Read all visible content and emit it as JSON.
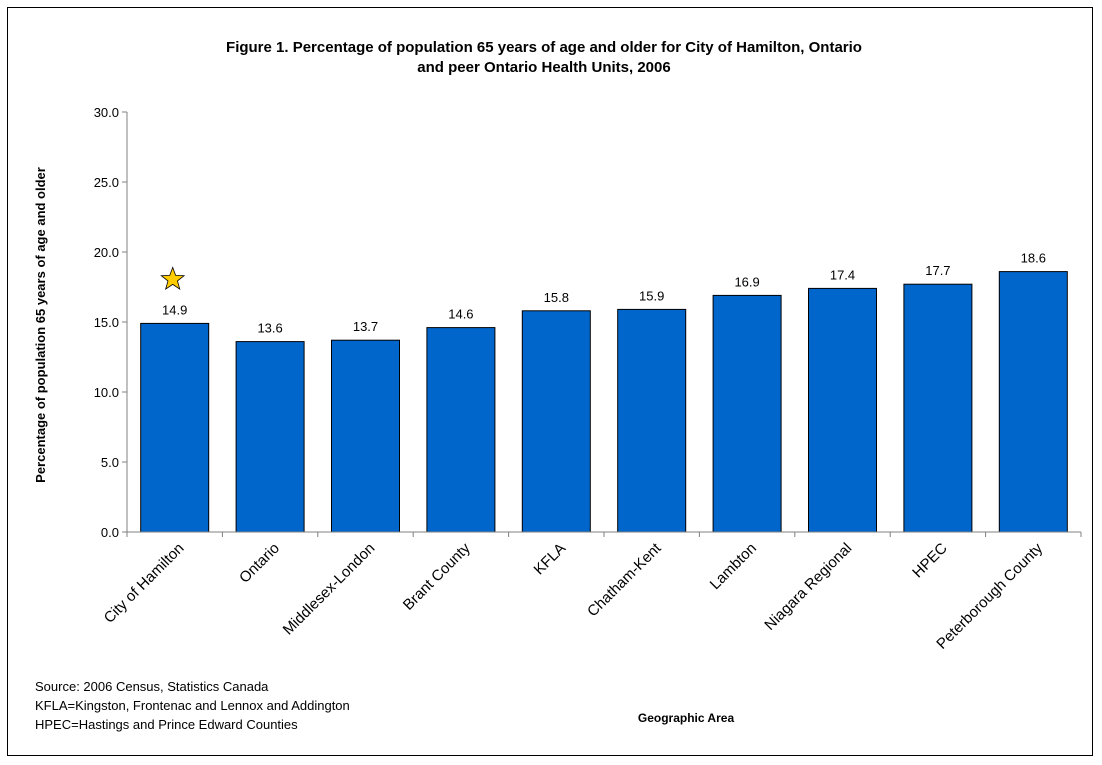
{
  "chart_data": {
    "type": "bar",
    "title": "Figure 1.  Percentage of population 65 years of age and older for City of Hamilton, Ontario",
    "title_line2": "and peer Ontario Health Units, 2006",
    "xlabel": "Geographic Area",
    "ylabel": "Percentage of population 65 years of age and older",
    "ylim": [
      0,
      30
    ],
    "yticks": [
      "0.0",
      "5.0",
      "10.0",
      "15.0",
      "20.0",
      "25.0",
      "30.0"
    ],
    "grid": false,
    "legend": "none",
    "categories": [
      "City of Hamilton",
      "Ontario",
      "Middlesex-London",
      "Brant County",
      "KFLA",
      "Chatham-Kent",
      "Lambton",
      "Niagara Regional",
      "HPEC",
      "Peterborough County"
    ],
    "values": [
      14.9,
      13.6,
      13.7,
      14.6,
      15.8,
      15.9,
      16.9,
      17.4,
      17.7,
      18.6
    ],
    "data_labels": [
      "14.9",
      "13.6",
      "13.7",
      "14.6",
      "15.8",
      "15.9",
      "16.9",
      "17.4",
      "17.7",
      "18.6"
    ],
    "bar_color": "#0066CC",
    "highlight": {
      "category": "City of Hamilton",
      "marker": "star-icon",
      "color": "#FFCC00"
    }
  },
  "notes": [
    "Source: 2006 Census, Statistics Canada",
    "KFLA=Kingston, Frontenac and Lennox and Addington",
    "HPEC=Hastings and Prince Edward Counties"
  ]
}
